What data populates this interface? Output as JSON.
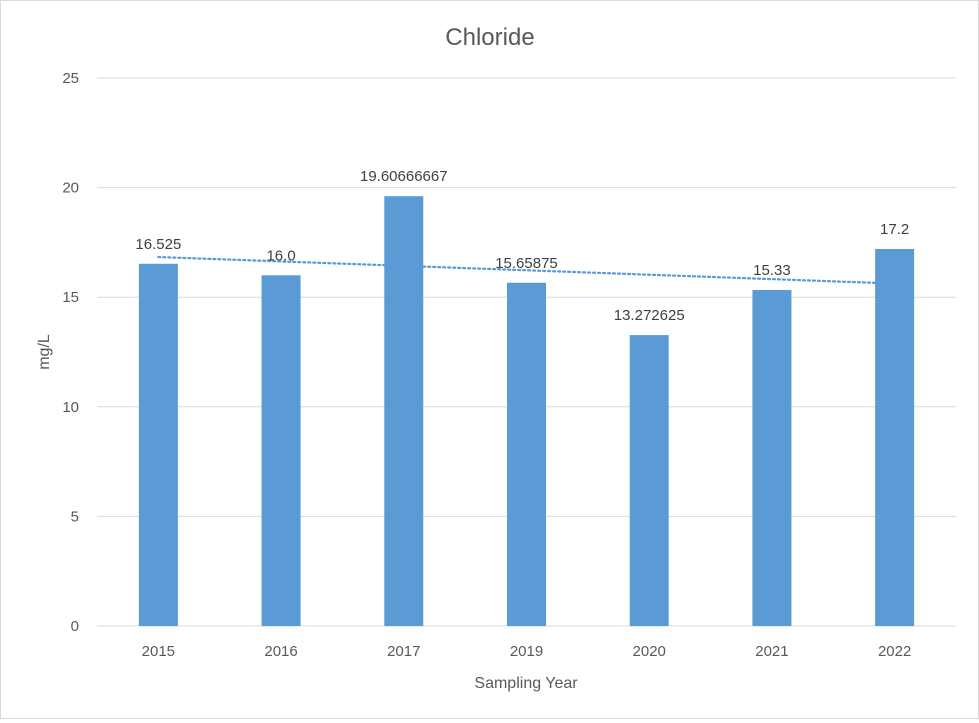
{
  "chart_data": {
    "type": "bar",
    "title": "Chloride",
    "xlabel": "Sampling Year",
    "ylabel": "mg/L",
    "categories": [
      "2015",
      "2016",
      "2017",
      "2019",
      "2020",
      "2021",
      "2022"
    ],
    "values": [
      16.525,
      16.0,
      19.60666667,
      15.65875,
      13.272625,
      15.33,
      17.2
    ],
    "data_labels": [
      "16.525",
      "16.0",
      "19.60666667",
      "15.65875",
      "13.272625",
      "15.33",
      "17.2"
    ],
    "ylim": [
      0,
      25
    ],
    "yticks": [
      0,
      5,
      10,
      15,
      20,
      25
    ],
    "grid": true,
    "legend": "none",
    "trendline": {
      "type": "linear",
      "style": "dotted",
      "color": "#5b9bd5"
    },
    "bar_color": "#5b9bd5",
    "grid_color": "#d9d9d9"
  }
}
